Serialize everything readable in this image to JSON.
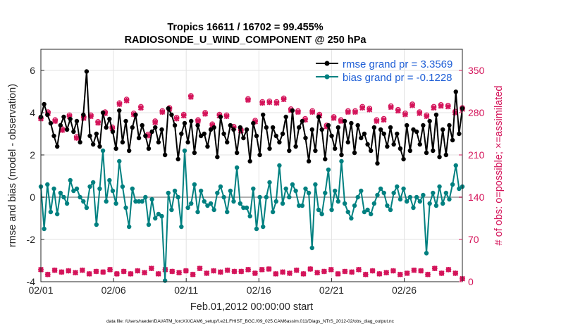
{
  "chart_data": {
    "type": "line",
    "title_line1": "Tropics 16611 / 16702 = 99.455%",
    "title_line2": "RADIOSONDE_U_WIND_COMPONENT @ 250 hPa",
    "xlabel": "Feb.01,2012 00:00:00 start",
    "ylabel_left": "rmse and bias (model - observation)",
    "ylabel_right": "# of obs: o=possible; ×=assimilated",
    "footer": "data file: /Users/raeder/DAI/ATM_forcXX/CAM6_setup/f.e21.FHIST_BGC.f09_025.CAM6assim.011/Diags_NTrS_2012-02/obs_diag_output.nc",
    "x_ticks": [
      {
        "day": 1,
        "label": "02/01"
      },
      {
        "day": 6,
        "label": "02/06"
      },
      {
        "day": 11,
        "label": "02/11"
      },
      {
        "day": 16,
        "label": "02/16"
      },
      {
        "day": 21,
        "label": "02/21"
      },
      {
        "day": 26,
        "label": "02/26"
      }
    ],
    "xlim": [
      1,
      30
    ],
    "ylim_left": [
      -4,
      7
    ],
    "yticks_left": [
      -4,
      -2,
      0,
      2,
      4,
      6
    ],
    "ylim_right": [
      0,
      385
    ],
    "yticks_right": [
      0,
      70,
      140,
      210,
      280,
      350
    ],
    "series": [
      {
        "name": "rmse",
        "legend": "rmse grand pr = 3.3569",
        "color": "#000000",
        "values": [
          3.8,
          4.4,
          3.9,
          3.5,
          2.9,
          2.4,
          3.4,
          3.8,
          3.2,
          3.7,
          3.1,
          3.6,
          2.6,
          3.9,
          5.95,
          2.9,
          2.5,
          3.0,
          2.4,
          4.0,
          3.3,
          3.7,
          3.1,
          2.3,
          4.1,
          2.6,
          3.6,
          2.2,
          3.3,
          3.9,
          2.8,
          3.4,
          2.9,
          2.3,
          3.1,
          3.3,
          2.6,
          3.2,
          2.0,
          4.2,
          3.9,
          3.4,
          1.8,
          3.0,
          3.5,
          2.6,
          3.6,
          2.1,
          3.4,
          2.9,
          3.0,
          2.4,
          3.2,
          3.3,
          1.9,
          3.8,
          3.0,
          2.6,
          3.4,
          3.2,
          2.1,
          3.3,
          2.8,
          3.2,
          1.7,
          3.5,
          2.9,
          2.0,
          3.9,
          3.3,
          2.3,
          3.3,
          2.9,
          2.6,
          3.0,
          3.8,
          2.2,
          4.1,
          2.4,
          3.3,
          3.6,
          2.8,
          1.7,
          3.2,
          2.2,
          3.8,
          3.2,
          1.8,
          3.4,
          2.9,
          2.3,
          3.3,
          2.0,
          3.6,
          2.6,
          3.5,
          2.1,
          3.4,
          2.8,
          3.0,
          2.5,
          2.2,
          3.3,
          1.6,
          3.2,
          3.0,
          2.4,
          3.3,
          2.5,
          3.0,
          2.3,
          1.8,
          3.4,
          2.2,
          3.2,
          3.1,
          2.5,
          3.4,
          2.1,
          3.6,
          2.2,
          3.9,
          1.9,
          3.2,
          2.0,
          3.4,
          2.7,
          4.99,
          3.0,
          4.2
        ]
      },
      {
        "name": "bias",
        "legend": "bias grand pr = -0.1228",
        "color": "#008080",
        "values": [
          0.5,
          -1.5,
          0.6,
          -0.7,
          0.4,
          -0.8,
          0.2,
          0.0,
          -0.3,
          0.8,
          0.3,
          0.4,
          0.0,
          -0.2,
          -0.5,
          0.5,
          0.7,
          -1.3,
          0.4,
          2.2,
          -0.2,
          0.8,
          0.3,
          -0.3,
          1.7,
          0.5,
          -0.5,
          -1.4,
          0.4,
          -0.2,
          -0.2,
          -0.2,
          0.0,
          -1.3,
          -0.1,
          -1.0,
          -0.8,
          -0.9,
          -3.95,
          0.2,
          -0.6,
          0.3,
          0.0,
          -1.4,
          2.2,
          -0.5,
          -0.3,
          0.6,
          -0.7,
          0.3,
          -0.2,
          -0.4,
          -0.3,
          -0.6,
          0.2,
          0.5,
          0.0,
          -0.7,
          0.3,
          -0.2,
          1.4,
          -0.3,
          -0.5,
          -0.5,
          -0.9,
          0.4,
          -1.5,
          0.0,
          -1.4,
          0.0,
          0.7,
          -0.7,
          -0.2,
          1.5,
          -0.3,
          0.4,
          0.0,
          0.6,
          0.3,
          -0.4,
          -0.4,
          0.4,
          0.2,
          -2.4,
          0.6,
          -0.6,
          -0.8,
          0.2,
          1.3,
          -0.6,
          0.3,
          -0.2,
          1.7,
          -0.3,
          -0.7,
          -1.0,
          -0.4,
          0.0,
          0.3,
          -0.7,
          -0.6,
          -0.8,
          -0.3,
          0.1,
          0.4,
          0.2,
          -0.4,
          -0.6,
          0.2,
          0.5,
          -0.1,
          0.4,
          -0.2,
          0.0,
          -0.5,
          0.0,
          -0.2,
          0.1,
          -2.65,
          -0.3,
          0.2,
          -0.4,
          0.5,
          -0.3,
          0.2,
          -0.1,
          0.6,
          1.5,
          0.4,
          0.5
        ]
      }
    ],
    "obs_possible": [
      271,
      281,
      268,
      253,
      276,
      240,
      273,
      276,
      265,
      281,
      256,
      296,
      302,
      279,
      290,
      244,
      266,
      283,
      288,
      272,
      277,
      308,
      268,
      280,
      261,
      277,
      276,
      257,
      252,
      303,
      267,
      298,
      299,
      298,
      304,
      286,
      283,
      270,
      283,
      277,
      259,
      273,
      268,
      283,
      283,
      290,
      287,
      268,
      270,
      291,
      285,
      279,
      294,
      281,
      276,
      290,
      293,
      292,
      282,
      288
    ],
    "obs_assimilated": [
      270,
      279,
      266,
      251,
      274,
      238,
      271,
      274,
      263,
      279,
      254,
      294,
      300,
      277,
      288,
      242,
      264,
      281,
      286,
      270,
      275,
      306,
      266,
      278,
      259,
      275,
      274,
      255,
      250,
      301,
      265,
      296,
      297,
      296,
      302,
      284,
      281,
      268,
      281,
      275,
      257,
      271,
      266,
      281,
      281,
      288,
      285,
      266,
      268,
      289,
      283,
      277,
      292,
      279,
      274,
      288,
      291,
      290,
      280,
      286
    ],
    "obs_low": [
      20,
      12,
      19,
      16,
      18,
      15,
      19,
      13,
      17,
      16,
      20,
      13,
      17,
      13,
      18,
      15,
      22,
      13,
      20,
      17,
      15,
      18,
      12,
      22,
      14,
      18,
      16,
      19,
      17,
      17,
      20,
      14,
      20,
      21,
      13,
      16,
      14,
      19,
      13,
      21,
      15,
      17,
      20,
      13,
      17,
      16,
      20,
      12,
      18,
      13,
      15,
      18,
      12,
      14,
      19,
      18,
      12,
      22,
      14,
      20,
      14,
      5
    ]
  }
}
